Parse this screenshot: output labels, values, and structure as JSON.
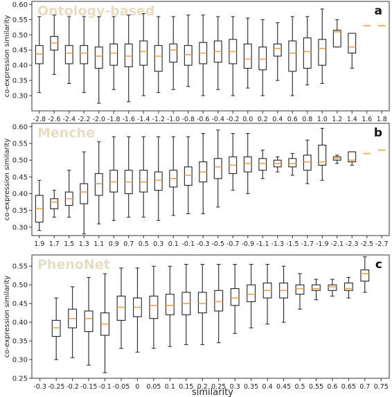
{
  "figure": {
    "xlabel": "similarity"
  },
  "chart_data": [
    {
      "type": "boxplot",
      "panel_label": "a",
      "title": "Ontology-based",
      "ylabel": "co-expression similarity",
      "ylim": [
        0.25,
        0.61
      ],
      "yticks": [
        0.3,
        0.35,
        0.4,
        0.45,
        0.5,
        0.55,
        0.6
      ],
      "ytick_labels": [
        "0.30",
        "0.35",
        "0.40",
        "0.45",
        "0.50",
        "0.55",
        "0.60"
      ],
      "categories": [
        "-2.8",
        "-2.6",
        "-2.4",
        "-2.2",
        "-2.0",
        "-1.8",
        "-1.6",
        "-1.4",
        "-1.2",
        "-1.0",
        "-0.8",
        "-0.6",
        "-0.4",
        "-0.2",
        "0.0",
        "0.2",
        "0.4",
        "0.6",
        "0.8",
        "1.0",
        "1.2",
        "1.4",
        "1.6",
        "1.8"
      ],
      "boxes": [
        {
          "min": 0.31,
          "q1": 0.405,
          "median": 0.437,
          "q3": 0.465,
          "max": 0.56
        },
        {
          "min": 0.37,
          "q1": 0.45,
          "median": 0.473,
          "q3": 0.495,
          "max": 0.565
        },
        {
          "min": 0.34,
          "q1": 0.405,
          "median": 0.44,
          "q3": 0.465,
          "max": 0.56
        },
        {
          "min": 0.31,
          "q1": 0.405,
          "median": 0.44,
          "q3": 0.465,
          "max": 0.56
        },
        {
          "min": 0.275,
          "q1": 0.39,
          "median": 0.43,
          "q3": 0.46,
          "max": 0.56
        },
        {
          "min": 0.32,
          "q1": 0.4,
          "median": 0.44,
          "q3": 0.47,
          "max": 0.56
        },
        {
          "min": 0.28,
          "q1": 0.395,
          "median": 0.43,
          "q3": 0.47,
          "max": 0.565
        },
        {
          "min": 0.3,
          "q1": 0.4,
          "median": 0.445,
          "q3": 0.48,
          "max": 0.57
        },
        {
          "min": 0.31,
          "q1": 0.38,
          "median": 0.43,
          "q3": 0.465,
          "max": 0.56
        },
        {
          "min": 0.32,
          "q1": 0.41,
          "median": 0.45,
          "q3": 0.47,
          "max": 0.56
        },
        {
          "min": 0.33,
          "q1": 0.4,
          "median": 0.435,
          "q3": 0.465,
          "max": 0.565
        },
        {
          "min": 0.3,
          "q1": 0.405,
          "median": 0.44,
          "q3": 0.475,
          "max": 0.565
        },
        {
          "min": 0.32,
          "q1": 0.41,
          "median": 0.445,
          "q3": 0.48,
          "max": 0.56
        },
        {
          "min": 0.3,
          "q1": 0.405,
          "median": 0.445,
          "q3": 0.485,
          "max": 0.56
        },
        {
          "min": 0.325,
          "q1": 0.39,
          "median": 0.42,
          "q3": 0.47,
          "max": 0.555
        },
        {
          "min": 0.3,
          "q1": 0.385,
          "median": 0.42,
          "q3": 0.46,
          "max": 0.55
        },
        {
          "min": 0.35,
          "q1": 0.43,
          "median": 0.455,
          "q3": 0.47,
          "max": 0.54
        },
        {
          "min": 0.3,
          "q1": 0.38,
          "median": 0.44,
          "q3": 0.48,
          "max": 0.56
        },
        {
          "min": 0.335,
          "q1": 0.39,
          "median": 0.445,
          "q3": 0.49,
          "max": 0.56
        },
        {
          "min": 0.34,
          "q1": 0.4,
          "median": 0.455,
          "q3": 0.485,
          "max": 0.585
        },
        {
          "min": 0.46,
          "q1": 0.46,
          "median": 0.51,
          "q3": 0.515,
          "max": 0.55
        },
        {
          "min": 0.39,
          "q1": 0.44,
          "median": 0.46,
          "q3": 0.505,
          "max": 0.505
        },
        {
          "min": 0.53,
          "q1": 0.53,
          "median": 0.53,
          "q3": 0.53,
          "max": 0.53
        },
        {
          "min": 0.53,
          "q1": 0.53,
          "median": 0.53,
          "q3": 0.53,
          "max": 0.53
        }
      ]
    },
    {
      "type": "boxplot",
      "panel_label": "b",
      "title": "Menche",
      "ylabel": "co-expression similarity",
      "ylim": [
        0.275,
        0.61
      ],
      "yticks": [
        0.3,
        0.35,
        0.4,
        0.45,
        0.5,
        0.55,
        0.6
      ],
      "ytick_labels": [
        "0.30",
        "0.35",
        "0.40",
        "0.45",
        "0.50",
        "0.55",
        "0.60"
      ],
      "categories": [
        "1.9",
        "1.7",
        "1.5",
        "1.3",
        "1.1",
        "0.9",
        "0.7",
        "0.5",
        "0.3",
        "0.1",
        "-0.1",
        "-0.3",
        "-0.5",
        "-0.7",
        "-0.9",
        "-1.1",
        "-1.3",
        "-1.5",
        "-1.7",
        "-1.9",
        "-2.1",
        "-2.3",
        "-2.5",
        "-2.7"
      ],
      "boxes": [
        {
          "min": 0.29,
          "q1": 0.315,
          "median": 0.355,
          "q3": 0.395,
          "max": 0.44
        },
        {
          "min": 0.33,
          "q1": 0.355,
          "median": 0.375,
          "q3": 0.385,
          "max": 0.41
        },
        {
          "min": 0.33,
          "q1": 0.365,
          "median": 0.385,
          "q3": 0.405,
          "max": 0.47
        },
        {
          "min": 0.28,
          "q1": 0.37,
          "median": 0.405,
          "q3": 0.43,
          "max": 0.525
        },
        {
          "min": 0.31,
          "q1": 0.395,
          "median": 0.43,
          "q3": 0.46,
          "max": 0.555
        },
        {
          "min": 0.32,
          "q1": 0.405,
          "median": 0.435,
          "q3": 0.47,
          "max": 0.57
        },
        {
          "min": 0.33,
          "q1": 0.4,
          "median": 0.435,
          "q3": 0.47,
          "max": 0.57
        },
        {
          "min": 0.33,
          "q1": 0.405,
          "median": 0.435,
          "q3": 0.47,
          "max": 0.57
        },
        {
          "min": 0.32,
          "q1": 0.41,
          "median": 0.44,
          "q3": 0.465,
          "max": 0.57
        },
        {
          "min": 0.335,
          "q1": 0.42,
          "median": 0.445,
          "q3": 0.47,
          "max": 0.57
        },
        {
          "min": 0.34,
          "q1": 0.425,
          "median": 0.455,
          "q3": 0.48,
          "max": 0.57
        },
        {
          "min": 0.34,
          "q1": 0.435,
          "median": 0.465,
          "q3": 0.495,
          "max": 0.58
        },
        {
          "min": 0.36,
          "q1": 0.445,
          "median": 0.48,
          "q3": 0.505,
          "max": 0.59
        },
        {
          "min": 0.41,
          "q1": 0.46,
          "median": 0.485,
          "q3": 0.51,
          "max": 0.58
        },
        {
          "min": 0.4,
          "q1": 0.465,
          "median": 0.49,
          "q3": 0.51,
          "max": 0.58
        },
        {
          "min": 0.445,
          "q1": 0.47,
          "median": 0.49,
          "q3": 0.505,
          "max": 0.53
        },
        {
          "min": 0.465,
          "q1": 0.48,
          "median": 0.49,
          "q3": 0.5,
          "max": 0.51
        },
        {
          "min": 0.455,
          "q1": 0.48,
          "median": 0.49,
          "q3": 0.505,
          "max": 0.52
        },
        {
          "min": 0.43,
          "q1": 0.47,
          "median": 0.495,
          "q3": 0.515,
          "max": 0.56
        },
        {
          "min": 0.44,
          "q1": 0.485,
          "median": 0.495,
          "q3": 0.545,
          "max": 0.595
        },
        {
          "min": 0.49,
          "q1": 0.5,
          "median": 0.505,
          "q3": 0.51,
          "max": 0.515
        },
        {
          "min": 0.485,
          "q1": 0.495,
          "median": 0.5,
          "q3": 0.525,
          "max": 0.525
        },
        {
          "min": 0.52,
          "q1": 0.52,
          "median": 0.52,
          "q3": 0.52,
          "max": 0.52
        },
        {
          "min": 0.53,
          "q1": 0.53,
          "median": 0.53,
          "q3": 0.53,
          "max": 0.53
        }
      ]
    },
    {
      "type": "boxplot",
      "panel_label": "c",
      "title": "PhenoNet",
      "ylabel": "co-expression similarity",
      "ylim": [
        0.25,
        0.58
      ],
      "yticks": [
        0.25,
        0.3,
        0.35,
        0.4,
        0.45,
        0.5,
        0.55
      ],
      "ytick_labels": [
        "0.25",
        "0.30",
        "0.35",
        "0.40",
        "0.45",
        "0.50",
        "0.55"
      ],
      "categories": [
        "-0.3",
        "-0.25",
        "-0.2",
        "-0.15",
        "-0.1",
        "-0.05",
        "0",
        "0.05",
        "0.1",
        "0.15",
        "0.2",
        "0.25",
        "0.3",
        "0.35",
        "0.4",
        "0.45",
        "0.5",
        "0.55",
        "0.6",
        "0.65",
        "0.7",
        "0.75"
      ],
      "boxes": [
        null,
        {
          "min": 0.3,
          "q1": 0.362,
          "median": 0.385,
          "q3": 0.405,
          "max": 0.465
        },
        {
          "min": 0.305,
          "q1": 0.385,
          "median": 0.41,
          "q3": 0.435,
          "max": 0.495
        },
        {
          "min": 0.285,
          "q1": 0.375,
          "median": 0.41,
          "q3": 0.43,
          "max": 0.52
        },
        {
          "min": 0.265,
          "q1": 0.365,
          "median": 0.395,
          "q3": 0.425,
          "max": 0.53
        },
        {
          "min": 0.33,
          "q1": 0.405,
          "median": 0.44,
          "q3": 0.47,
          "max": 0.545
        },
        {
          "min": 0.32,
          "q1": 0.415,
          "median": 0.44,
          "q3": 0.465,
          "max": 0.545
        },
        {
          "min": 0.33,
          "q1": 0.41,
          "median": 0.445,
          "q3": 0.47,
          "max": 0.55
        },
        {
          "min": 0.335,
          "q1": 0.42,
          "median": 0.445,
          "q3": 0.475,
          "max": 0.55
        },
        {
          "min": 0.34,
          "q1": 0.42,
          "median": 0.45,
          "q3": 0.48,
          "max": 0.555
        },
        {
          "min": 0.34,
          "q1": 0.425,
          "median": 0.45,
          "q3": 0.48,
          "max": 0.555
        },
        {
          "min": 0.345,
          "q1": 0.43,
          "median": 0.455,
          "q3": 0.485,
          "max": 0.555
        },
        {
          "min": 0.37,
          "q1": 0.445,
          "median": 0.465,
          "q3": 0.49,
          "max": 0.555
        },
        {
          "min": 0.385,
          "q1": 0.455,
          "median": 0.475,
          "q3": 0.5,
          "max": 0.555
        },
        {
          "min": 0.395,
          "q1": 0.465,
          "median": 0.485,
          "q3": 0.505,
          "max": 0.555
        },
        {
          "min": 0.4,
          "q1": 0.465,
          "median": 0.485,
          "q3": 0.505,
          "max": 0.55
        },
        {
          "min": 0.435,
          "q1": 0.475,
          "median": 0.49,
          "q3": 0.5,
          "max": 0.53
        },
        {
          "min": 0.46,
          "q1": 0.485,
          "median": 0.49,
          "q3": 0.5,
          "max": 0.515
        },
        {
          "min": 0.47,
          "q1": 0.485,
          "median": 0.495,
          "q3": 0.5,
          "max": 0.515
        },
        {
          "min": 0.465,
          "q1": 0.485,
          "median": 0.49,
          "q3": 0.505,
          "max": 0.52
        },
        {
          "min": 0.48,
          "q1": 0.51,
          "median": 0.53,
          "q3": 0.54,
          "max": 0.575
        },
        null
      ]
    }
  ],
  "colors": {
    "box_edge": "#222222",
    "median": "#e8a14c",
    "title_watermark": "#e7dcc4",
    "axis": "#333333"
  }
}
